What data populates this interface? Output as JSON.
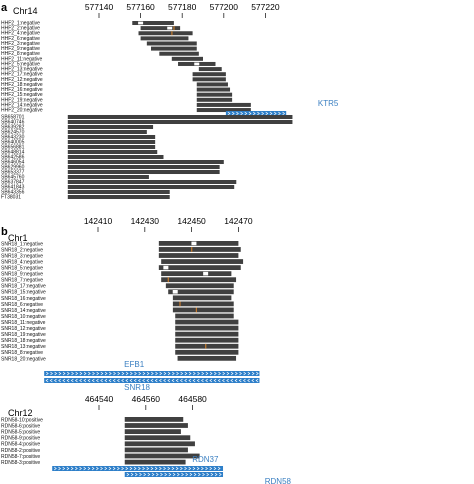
{
  "colors": {
    "read": "#404040",
    "insertion": "#ffffff",
    "snp": "#c47a2c",
    "gene": "#2e7fc9",
    "gene_label": "#3a7fc1",
    "axis": "#222222"
  },
  "icons": [
    "gene-arrow-right-icon",
    "gene-arrow-left-icon"
  ],
  "panels": [
    {
      "letter": "a",
      "chrom": "Chr14",
      "ticks": [
        577140,
        577160,
        577180,
        577200,
        577220
      ],
      "groups": [
        {
          "reads": [
            {
              "label": "HHF2_1:negative",
              "start": 577156,
              "end": 577176,
              "ins": [
                577160,
                577178
              ]
            },
            {
              "label": "HHF2_2:negative",
              "start": 577160,
              "end": 577179,
              "ins": [
                577174
              ],
              "snp": [
                577176
              ]
            },
            {
              "label": "HHF2_4:negative",
              "start": 577159,
              "end": 577185,
              "snp": [
                577175
              ]
            },
            {
              "label": "HHF2_6:negative",
              "start": 577160,
              "end": 577183
            },
            {
              "label": "HHF2_3:negative",
              "start": 577163,
              "end": 577187
            },
            {
              "label": "HHF2_9:negative",
              "start": 577165,
              "end": 577187
            },
            {
              "label": "HHF2_8:negative",
              "start": 577169,
              "end": 577188
            },
            {
              "label": "HHF2_11:negative",
              "start": 577175,
              "end": 577190
            },
            {
              "label": "HHF2_5:negative",
              "start": 577178,
              "end": 577196,
              "ins": [
                577187
              ]
            },
            {
              "label": "HHF2_13:negative",
              "start": 577188,
              "end": 577199
            },
            {
              "label": "HHF2_17:negative",
              "start": 577185,
              "end": 577201
            },
            {
              "label": "HHF2_12:negative",
              "start": 577185,
              "end": 577201
            },
            {
              "label": "HHF2_18:negative",
              "start": 577187,
              "end": 577202
            },
            {
              "label": "HHF2_16:negative",
              "start": 577187,
              "end": 577203
            },
            {
              "label": "HHF2_15:negative",
              "start": 577187,
              "end": 577204
            },
            {
              "label": "HHF2_19:negative",
              "start": 577187,
              "end": 577204
            },
            {
              "label": "HHF2_14:negative",
              "start": 577187,
              "end": 577213
            },
            {
              "label": "HHF2_20:negative",
              "start": 577187,
              "end": 577213
            }
          ],
          "genes": [
            {
              "name": "KTR5",
              "start": 577201,
              "end": 577230,
              "strand": "+",
              "label_pos": "below-right"
            }
          ]
        },
        {
          "reads": [
            {
              "label": "SB658701",
              "start": 577125,
              "end": 577233
            },
            {
              "label": "SB640746",
              "start": 577125,
              "end": 577233
            },
            {
              "label": "SB639282",
              "start": 577125,
              "end": 577166
            },
            {
              "label": "SB624570",
              "start": 577125,
              "end": 577163
            },
            {
              "label": "SB643230",
              "start": 577125,
              "end": 577167
            },
            {
              "label": "SB640005",
              "start": 577125,
              "end": 577167
            },
            {
              "label": "SB656881",
              "start": 577125,
              "end": 577167
            },
            {
              "label": "SB648814",
              "start": 577125,
              "end": 577168
            },
            {
              "label": "SB642586",
              "start": 577125,
              "end": 577171
            },
            {
              "label": "SB646054",
              "start": 577125,
              "end": 577200
            },
            {
              "label": "SB629960",
              "start": 577125,
              "end": 577198
            },
            {
              "label": "SB653377",
              "start": 577125,
              "end": 577198
            },
            {
              "label": "SB645760",
              "start": 577125,
              "end": 577164
            },
            {
              "label": "SB637847",
              "start": 577125,
              "end": 577206
            },
            {
              "label": "SB641843",
              "start": 577125,
              "end": 577205
            },
            {
              "label": "SB643356",
              "start": 577125,
              "end": 577174
            },
            {
              "label": "FT38031",
              "start": 577125,
              "end": 577174
            }
          ],
          "genes": []
        }
      ]
    },
    {
      "letter": "b",
      "chrom": "Chr1",
      "ticks": [
        142410,
        142430,
        142450,
        142470
      ],
      "groups": [
        {
          "reads": [
            {
              "label": "SNR18_1:negative",
              "start": 142436,
              "end": 142470,
              "ins": [
                142451
              ]
            },
            {
              "label": "SNR18_2:negative",
              "start": 142436,
              "end": 142471,
              "snp": [
                142450
              ]
            },
            {
              "label": "SNR18_3:negative",
              "start": 142436,
              "end": 142470
            },
            {
              "label": "SNR18_4:negative",
              "start": 142437,
              "end": 142472
            },
            {
              "label": "SNR18_5:negative",
              "start": 142436,
              "end": 142471,
              "ins": [
                142439
              ]
            },
            {
              "label": "SNR18_9:negative",
              "start": 142437,
              "end": 142467,
              "ins": [
                142456
              ]
            },
            {
              "label": "SNR18_7:negative",
              "start": 142437,
              "end": 142469,
              "snp": [
                142440
              ]
            },
            {
              "label": "SNR18_17:negative",
              "start": 142439,
              "end": 142468
            },
            {
              "label": "SNR18_15:negative",
              "start": 142440,
              "end": 142468,
              "ins": [
                142443
              ]
            },
            {
              "label": "SNR18_16:negative",
              "start": 142442,
              "end": 142467
            },
            {
              "label": "SNR18_6:negative",
              "start": 142442,
              "end": 142468,
              "snp": [
                142445
              ]
            },
            {
              "label": "SNR18_14:negative",
              "start": 142442,
              "end": 142468,
              "snp": [
                142452
              ]
            },
            {
              "label": "SNR18_10:negative",
              "start": 142443,
              "end": 142468
            },
            {
              "label": "SNR18_11:negative",
              "start": 142443,
              "end": 142470
            },
            {
              "label": "SNR18_12:negative",
              "start": 142443,
              "end": 142470
            },
            {
              "label": "SNR18_19:negative",
              "start": 142443,
              "end": 142470
            },
            {
              "label": "SNR18_18:negative",
              "start": 142443,
              "end": 142470
            },
            {
              "label": "SNR18_13:negative",
              "start": 142443,
              "end": 142470,
              "snp": [
                142456
              ]
            },
            {
              "label": "SNR18_8:negative",
              "start": 142443,
              "end": 142470
            },
            {
              "label": "SNR18_20:negative",
              "start": 142444,
              "end": 142469
            }
          ],
          "genes": [
            {
              "name": "EFB1",
              "start": 142387,
              "end": 142479,
              "strand": "+",
              "label_pos": "above-left"
            },
            {
              "name": "SNR18",
              "start": 142387,
              "end": 142479,
              "strand": "-",
              "label_pos": "below-left"
            }
          ]
        }
      ]
    },
    {
      "letter": "",
      "chrom": "Chr12",
      "ticks": [
        464540,
        464560,
        464580
      ],
      "groups": [
        {
          "reads": [
            {
              "label": "RDN58-10:positive",
              "start": 464551,
              "end": 464576
            },
            {
              "label": "RDN58-6:positive",
              "start": 464551,
              "end": 464578
            },
            {
              "label": "RDN58-5:positive",
              "start": 464551,
              "end": 464575
            },
            {
              "label": "RDN58-9:positive",
              "start": 464551,
              "end": 464579
            },
            {
              "label": "RDN58-4:positive",
              "start": 464551,
              "end": 464581
            },
            {
              "label": "RDN58-2:positive",
              "start": 464551,
              "end": 464578
            },
            {
              "label": "RDN58-7:positive",
              "start": 464551,
              "end": 464583
            },
            {
              "label": "RDN58-3:positive",
              "start": 464551,
              "end": 464577
            }
          ],
          "genes": [
            {
              "name": "RDN37",
              "start": 464520,
              "end": 464593,
              "strand": "+",
              "label_pos": "above-left"
            },
            {
              "name": "RDN58",
              "start": 464551,
              "end": 464593,
              "strand": "+",
              "label_pos": "below-left"
            }
          ]
        }
      ]
    }
  ]
}
